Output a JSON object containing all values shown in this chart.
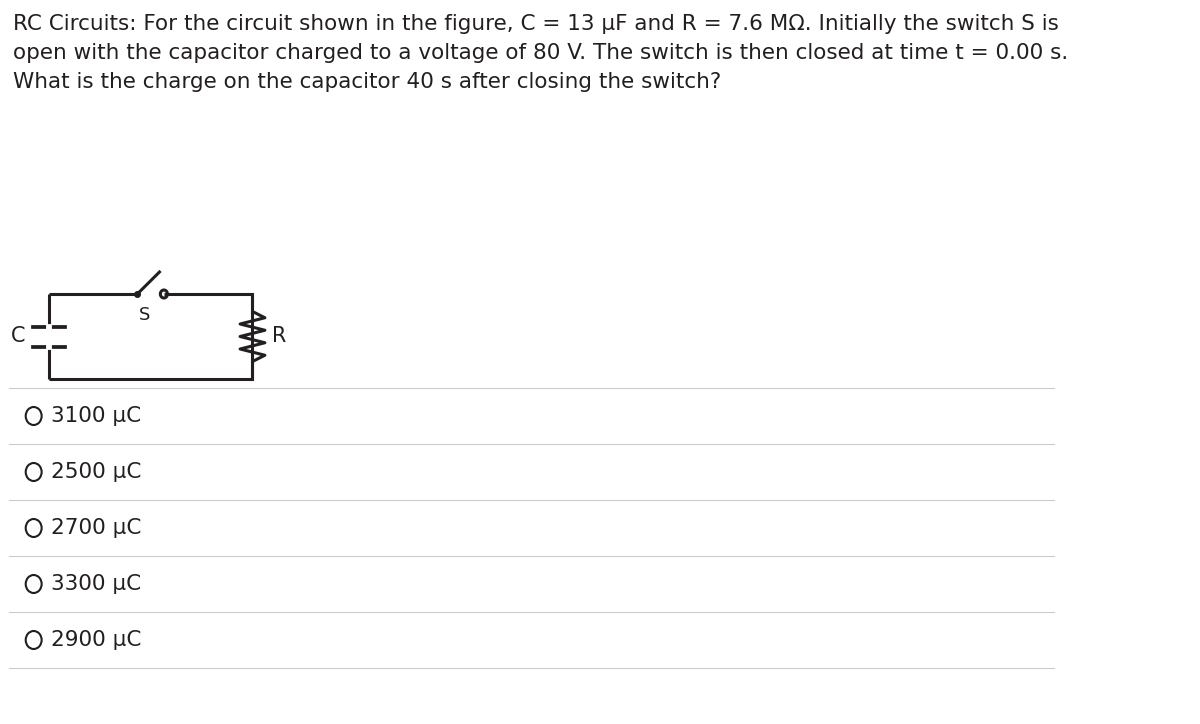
{
  "title_text": "RC Circuits: For the circuit shown in the figure, C = 13 μF and R = 7.6 MΩ. Initially the switch S is\nopen with the capacitor charged to a voltage of 80 V. The switch is then closed at time t = 0.00 s.\nWhat is the charge on the capacitor 40 s after closing the switch?",
  "options": [
    "3100 μC",
    "2500 μC",
    "2700 μC",
    "3300 μC",
    "2900 μC"
  ],
  "bg_color": "#ffffff",
  "text_color": "#231f20",
  "line_color": "#231f20",
  "title_fontsize": 15.5,
  "option_fontsize": 15.5,
  "separator_color": "#cccccc"
}
